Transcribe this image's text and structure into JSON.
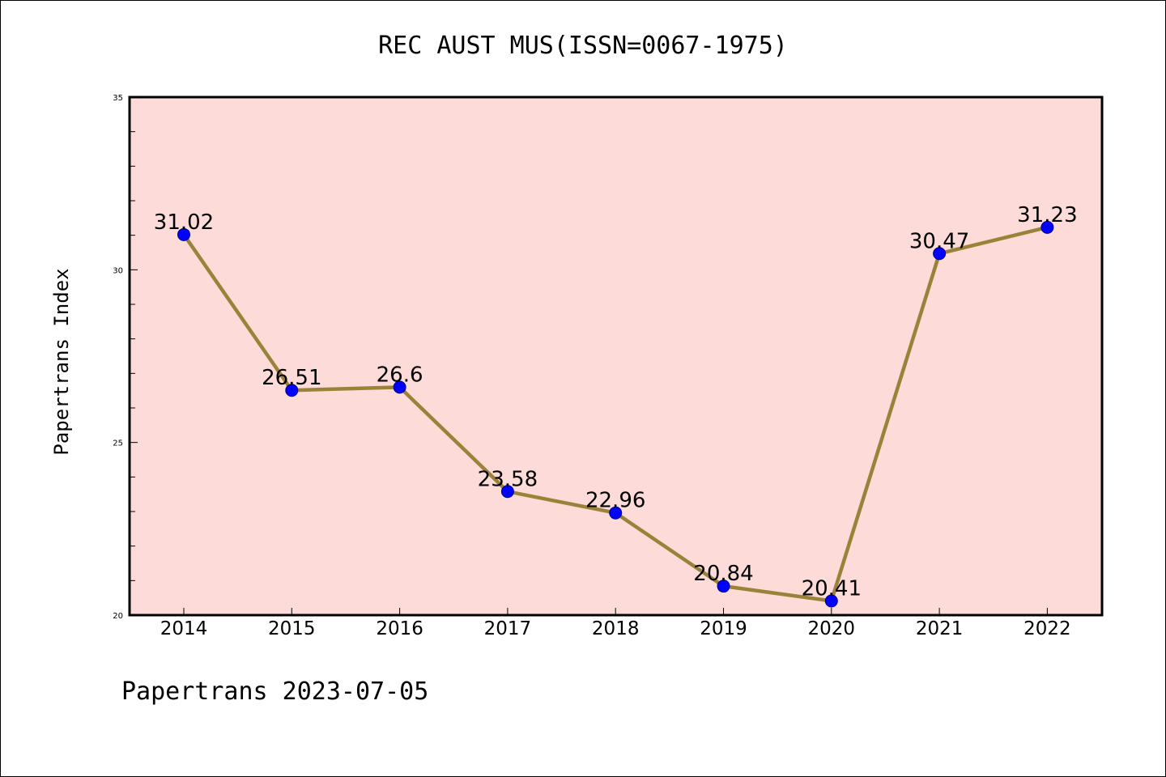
{
  "chart_data": {
    "type": "line",
    "title": "REC AUST MUS(ISSN=0067-1975)",
    "xlabel": "",
    "ylabel": "Papertrans Index",
    "categories": [
      "2014",
      "2015",
      "2016",
      "2017",
      "2018",
      "2019",
      "2020",
      "2021",
      "2022"
    ],
    "series": [
      {
        "values": [
          31.02,
          26.51,
          26.6,
          23.58,
          22.96,
          20.84,
          20.41,
          30.47,
          31.23
        ],
        "labels": [
          "31.02",
          "26.51",
          "26.6",
          "23.58",
          "22.96",
          "20.84",
          "20.41",
          "30.47",
          "31.23"
        ]
      }
    ],
    "ylim": [
      20,
      35
    ],
    "yticks": [
      "20",
      "25",
      "30",
      "35"
    ],
    "grid": false,
    "legend": "none"
  },
  "footer": {
    "text": "Papertrans 2023-07-05"
  },
  "colors": {
    "plot_background": "#fddbd8",
    "line": "#9b8239",
    "marker": "#0000ff",
    "marker_edge": "#00008b",
    "axes": "#000000"
  }
}
